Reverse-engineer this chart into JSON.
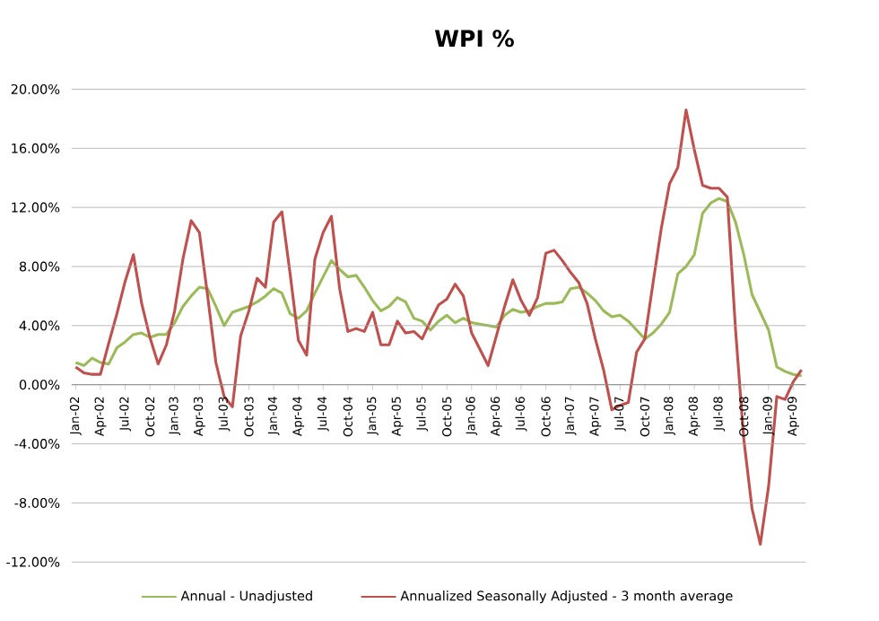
{
  "chart_data": {
    "type": "line",
    "title": "WPI %",
    "categories": [
      "Jan-02",
      null,
      null,
      "Apr-02",
      null,
      null,
      "Jul-02",
      null,
      null,
      "Oct-02",
      null,
      null,
      "Jan-03",
      null,
      null,
      "Apr-03",
      null,
      null,
      "Jul-03",
      null,
      null,
      "Oct-03",
      null,
      null,
      "Jan-04",
      null,
      null,
      "Apr-04",
      null,
      null,
      "Jul-04",
      null,
      null,
      "Oct-04",
      null,
      null,
      "Jan-05",
      null,
      null,
      "Apr-05",
      null,
      null,
      "Jul-05",
      null,
      null,
      "Oct-05",
      null,
      null,
      "Jan-06",
      null,
      null,
      "Apr-06",
      null,
      null,
      "Jul-06",
      null,
      null,
      "Oct-06",
      null,
      null,
      "Jan-07",
      null,
      null,
      "Apr-07",
      null,
      null,
      "Jul-07",
      null,
      null,
      "Oct-07",
      null,
      null,
      "Jan-08",
      null,
      null,
      "Apr-08",
      null,
      null,
      "Jul-08",
      null,
      null,
      "Oct-08",
      null,
      null,
      "Jan-09",
      null,
      null,
      "Apr-09",
      null
    ],
    "series": [
      {
        "name": "Annual - Unadjusted",
        "color": "#9bbb59",
        "values": [
          1.5,
          1.3,
          1.8,
          1.5,
          1.4,
          2.5,
          2.9,
          3.4,
          3.5,
          3.2,
          3.4,
          3.4,
          4.2,
          5.3,
          6.0,
          6.6,
          6.5,
          5.3,
          4.0,
          4.9,
          5.1,
          5.3,
          5.6,
          6.0,
          6.5,
          6.2,
          4.8,
          4.5,
          5.0,
          6.2,
          7.3,
          8.4,
          7.8,
          7.3,
          7.4,
          6.6,
          5.7,
          5.0,
          5.3,
          5.9,
          5.6,
          4.5,
          4.3,
          3.7,
          4.3,
          4.7,
          4.2,
          4.5,
          4.2,
          4.1,
          4.0,
          3.9,
          4.7,
          5.1,
          4.9,
          5.0,
          5.3,
          5.5,
          5.5,
          5.6,
          6.5,
          6.6,
          6.2,
          5.7,
          5.0,
          4.6,
          4.7,
          4.3,
          3.7,
          3.1,
          3.5,
          4.1,
          4.9,
          7.5,
          8.0,
          8.8,
          11.6,
          12.3,
          12.6,
          12.4,
          11.0,
          8.8,
          6.1,
          4.9,
          3.7,
          1.2,
          0.9,
          0.7,
          0.6
        ]
      },
      {
        "name": "Annualized Seasonally Adjusted - 3 month average",
        "color": "#c0504d",
        "values": [
          1.2,
          0.8,
          0.7,
          0.7,
          2.8,
          4.8,
          7.0,
          8.8,
          5.5,
          3.2,
          1.4,
          2.7,
          5.0,
          8.5,
          11.1,
          10.3,
          6.0,
          1.5,
          -0.8,
          -1.5,
          3.3,
          5.0,
          7.2,
          6.6,
          11.0,
          11.7,
          7.5,
          3.0,
          2.0,
          8.5,
          10.3,
          11.4,
          6.5,
          3.6,
          3.8,
          3.6,
          4.9,
          2.7,
          2.7,
          4.3,
          3.5,
          3.6,
          3.1,
          4.3,
          5.4,
          5.8,
          6.8,
          6.0,
          3.5,
          2.4,
          1.3,
          3.3,
          5.3,
          7.1,
          5.7,
          4.7,
          5.9,
          8.9,
          9.1,
          8.4,
          7.6,
          6.9,
          5.5,
          3.1,
          1.0,
          -1.7,
          -1.4,
          -1.2,
          2.2,
          3.1,
          6.9,
          10.6,
          13.6,
          14.7,
          18.6,
          15.9,
          13.5,
          13.3,
          13.3,
          12.7,
          3.7,
          -3.7,
          -8.4,
          -10.8,
          -6.9,
          -0.8,
          -1.0,
          0.2,
          1.0
        ]
      }
    ],
    "ylim": [
      -12,
      20
    ],
    "yticks": [
      {
        "value": -12,
        "label": "-12.00%"
      },
      {
        "value": -8,
        "label": "-8.00%"
      },
      {
        "value": -4,
        "label": "-4.00%"
      },
      {
        "value": 0,
        "label": "0.00%"
      },
      {
        "value": 4,
        "label": "4.00%"
      },
      {
        "value": 8,
        "label": "8.00%"
      },
      {
        "value": 12,
        "label": "12.00%"
      },
      {
        "value": 16,
        "label": "16.00%"
      },
      {
        "value": 20,
        "label": "20.00%"
      }
    ],
    "grid": "y",
    "legend": "bottom"
  }
}
